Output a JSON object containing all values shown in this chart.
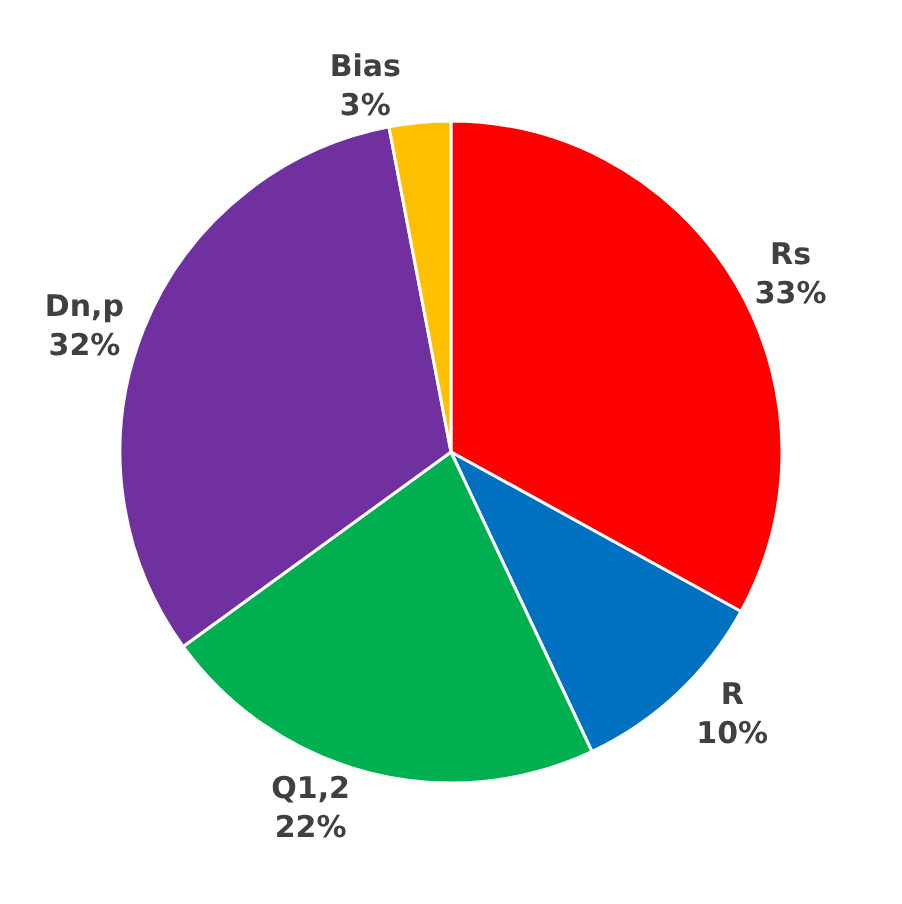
{
  "chart_data": {
    "type": "pie",
    "categories": [
      "Rs",
      "R",
      "Q1,2",
      "Dn,p",
      "Bias"
    ],
    "values": [
      33,
      10,
      22,
      32,
      3
    ],
    "value_labels": [
      "33%",
      "10%",
      "22%",
      "32%",
      "3%"
    ],
    "colors": [
      "#ff0000",
      "#0070c0",
      "#00b050",
      "#7030a0",
      "#ffc000"
    ],
    "legend": false
  }
}
